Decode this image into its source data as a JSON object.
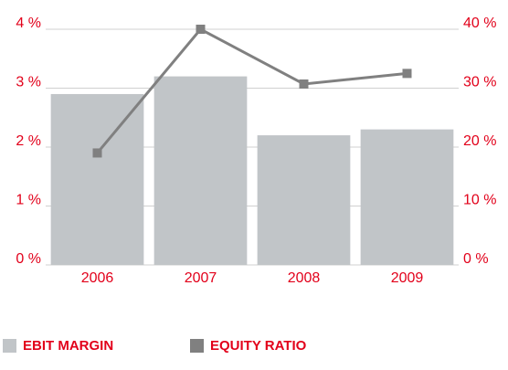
{
  "chart_data": {
    "type": "bar",
    "categories": [
      "2006",
      "2007",
      "2008",
      "2009"
    ],
    "series": [
      {
        "name": "EBIT MARGIN",
        "color": "#c1c5c8",
        "values": [
          2.9,
          3.2,
          2.2,
          2.3
        ]
      },
      {
        "name": "EQUITY RATIO",
        "color": "#808080",
        "type": "line",
        "axis": "y2",
        "values": [
          19,
          40,
          30.7,
          32.5
        ]
      }
    ],
    "ylim": [
      0,
      4
    ],
    "yticks": [
      {
        "value": 0,
        "label": "0 %"
      },
      {
        "value": 1,
        "label": "1 %"
      },
      {
        "value": 2,
        "label": "2 %"
      },
      {
        "value": 3,
        "label": "3 %"
      },
      {
        "value": 4,
        "label": "4 %"
      }
    ],
    "y2lim": [
      0,
      40
    ],
    "y2ticks": [
      {
        "value": 0,
        "label": "0 %"
      },
      {
        "value": 10,
        "label": "10 %"
      },
      {
        "value": 20,
        "label": "20 %"
      },
      {
        "value": 30,
        "label": "30 %"
      },
      {
        "value": 40,
        "label": "40 %"
      }
    ],
    "grid": true,
    "legend": "bottom"
  }
}
